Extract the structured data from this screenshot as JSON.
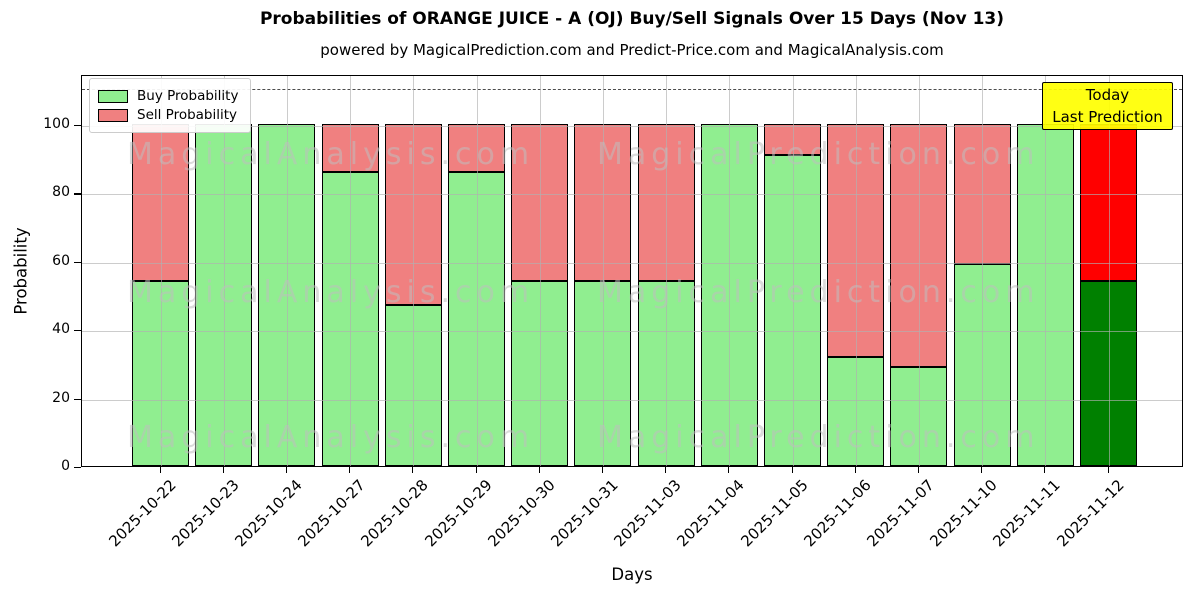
{
  "chart_data": {
    "type": "bar",
    "stacked": true,
    "title": "Probabilities of ORANGE JUICE - A (OJ) Buy/Sell Signals Over 15 Days (Nov 13)",
    "subtitle": "powered by MagicalPrediction.com and Predict-Price.com and MagicalAnalysis.com",
    "xlabel": "Days",
    "ylabel": "Probability",
    "ylim": [
      0,
      114.6
    ],
    "yticks": [
      0,
      20,
      40,
      60,
      80,
      100
    ],
    "grid": true,
    "dashed_guide_value": 111,
    "legend_position": "upper left",
    "categories": [
      "2025-10-22",
      "2025-10-23",
      "2025-10-24",
      "2025-10-27",
      "2025-10-28",
      "2025-10-29",
      "2025-10-30",
      "2025-10-31",
      "2025-11-03",
      "2025-11-04",
      "2025-11-05",
      "2025-11-06",
      "2025-11-07",
      "2025-11-10",
      "2025-11-11",
      "2025-11-12"
    ],
    "series": [
      {
        "name": "Buy Probability",
        "color": "#90EE90",
        "values": [
          54,
          100,
          100,
          86,
          47,
          86,
          54,
          54,
          54,
          100,
          91,
          32,
          29,
          59,
          100,
          54
        ]
      },
      {
        "name": "Sell Probability",
        "color": "#F08080",
        "values": [
          46,
          0,
          0,
          14,
          53,
          14,
          46,
          46,
          46,
          0,
          9,
          68,
          71,
          41,
          0,
          46
        ]
      }
    ],
    "today_bar": {
      "index": 15,
      "category": "2025-11-12",
      "buy_color": "#008000",
      "sell_color": "#FF0000"
    }
  },
  "annotation": {
    "line1": "Today",
    "line2": "Last Prediction",
    "bg_color": "#FFFF00"
  },
  "watermarks": {
    "left_text": "MagicalAnalysis.com",
    "right_text": "MagicalPrediction.com",
    "rows": 3
  },
  "colors": {
    "bar_edge": "#000000",
    "grid": "#b0b0b0",
    "dashed_line": "#4d4d4d",
    "watermark": "#bfbfbf",
    "annotation_border": "#000000"
  }
}
